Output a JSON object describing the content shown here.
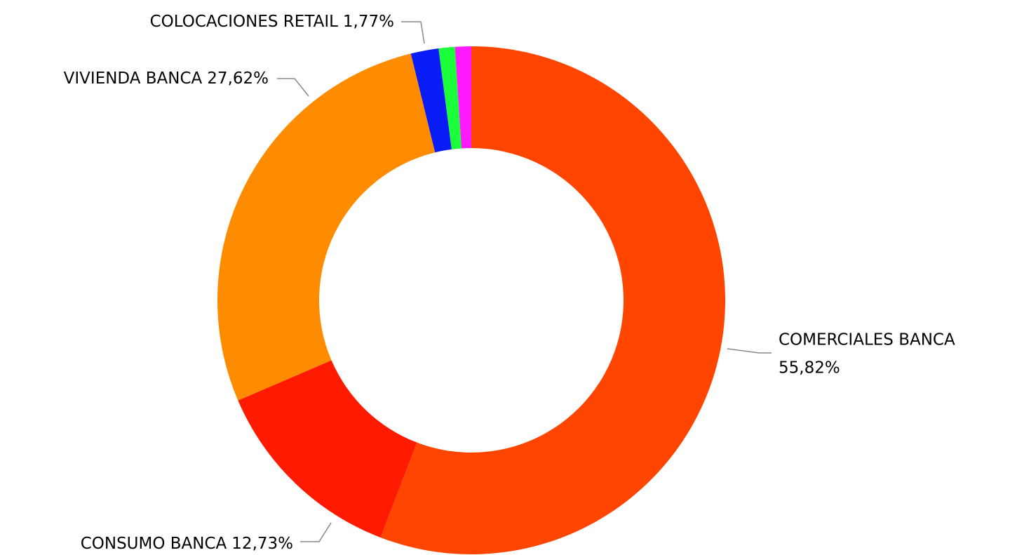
{
  "chart_data": {
    "type": "donut",
    "categories": [
      "COMERCIALES BANCA",
      "CONSUMO BANCA",
      "VIVIENDA BANCA",
      "COLOCACIONES RETAIL",
      null,
      null
    ],
    "values": [
      55.82,
      12.73,
      27.62,
      1.77,
      1.03,
      1.03
    ],
    "value_labels": [
      "55,82%",
      "12,73%",
      "27,62%",
      "1,77%",
      null,
      null
    ],
    "colors": [
      "#ff4500",
      "#ff1a00",
      "#ff8c00",
      "#0a1cf5",
      "#1aff3a",
      "#ff19ff"
    ]
  }
}
